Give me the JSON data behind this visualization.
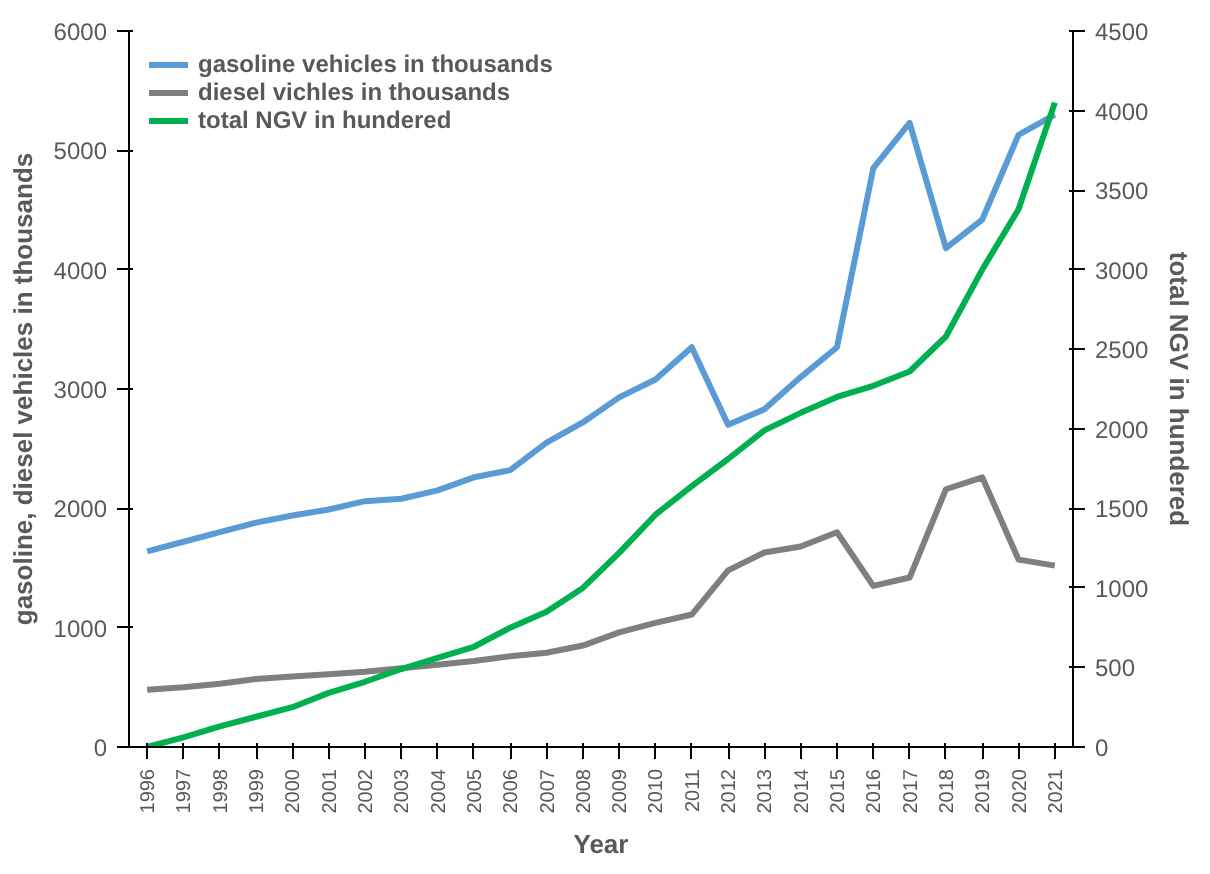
{
  "chart_data": {
    "type": "line",
    "xlabel": "Year",
    "ylabel": "gasoline, diesel vehicles in thousands",
    "y2label": "total NGV in hundered",
    "categories": [
      "1996",
      "1997",
      "1998",
      "1999",
      "2000",
      "2001",
      "2002",
      "2003",
      "2004",
      "2005",
      "2006",
      "2007",
      "2008",
      "2009",
      "2010",
      "2011",
      "2012",
      "2013",
      "2014",
      "2015",
      "2016",
      "2017",
      "2018",
      "2019",
      "2020",
      "2021"
    ],
    "series": [
      {
        "name": "gasoline vehicles in thousands",
        "color": "#5b9bd5",
        "values": [
          1640,
          1720,
          1800,
          1880,
          1940,
          1990,
          2060,
          2080,
          2150,
          2260,
          2320,
          2550,
          2720,
          2930,
          3080,
          3350,
          2700,
          2830,
          3100,
          3350,
          4850,
          5230,
          4180,
          4420,
          5130,
          5300
        ]
      },
      {
        "name": "diesel vichles in thousands",
        "color": "#7f7f7f",
        "values": [
          480,
          500,
          530,
          570,
          590,
          610,
          630,
          660,
          690,
          720,
          760,
          790,
          850,
          960,
          1040,
          1110,
          1480,
          1630,
          1680,
          1800,
          1350,
          1420,
          2160,
          2260,
          1570,
          1520
        ]
      },
      {
        "name": "total NGV in hundered",
        "color": "#00b050",
        "axis": "y2",
        "values": [
          0,
          60,
          130,
          190,
          250,
          340,
          410,
          490,
          560,
          630,
          750,
          850,
          1000,
          1220,
          1460,
          1640,
          1810,
          1990,
          2100,
          2200,
          2270,
          2360,
          2580,
          3000,
          3380,
          4050
        ]
      }
    ],
    "ylim": [
      0,
      6000
    ],
    "yticks": [
      0,
      1000,
      2000,
      3000,
      4000,
      5000,
      6000
    ],
    "y2lim": [
      0,
      4500
    ],
    "y2ticks": [
      0,
      500,
      1000,
      1500,
      2000,
      2500,
      3000,
      3500,
      4000,
      4500
    ],
    "legend": "top left",
    "grid": false
  }
}
